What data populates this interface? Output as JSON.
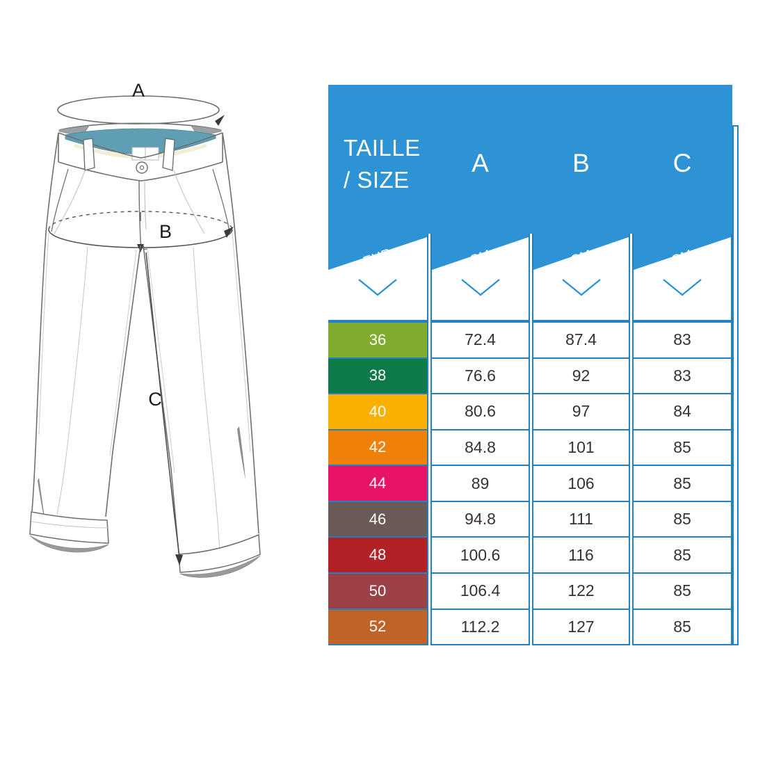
{
  "figure": {
    "labels": {
      "a": "A",
      "b": "B",
      "c": "C"
    }
  },
  "table": {
    "header": {
      "size_label_line1": "TAILLE",
      "size_label_line2": "/ SIZE",
      "col_a": "A",
      "col_b": "B",
      "col_c": "C"
    },
    "units": {
      "size": "EUR",
      "a": "CM",
      "b": "CM",
      "c": "CM"
    },
    "colors": {
      "header_blue": "#2d93d5",
      "border_blue": "#2281c5",
      "chevron_blue": "#2e93d6"
    },
    "rows": [
      {
        "size": "36",
        "color": "#80ab2e",
        "a": "72.4",
        "b": "87.4",
        "c": "83"
      },
      {
        "size": "38",
        "color": "#0d7a49",
        "a": "76.6",
        "b": "92",
        "c": "83"
      },
      {
        "size": "40",
        "color": "#f9b000",
        "a": "80.6",
        "b": "97",
        "c": "84"
      },
      {
        "size": "42",
        "color": "#ef8109",
        "a": "84.8",
        "b": "101",
        "c": "85"
      },
      {
        "size": "44",
        "color": "#e91269",
        "a": "89",
        "b": "106",
        "c": "85"
      },
      {
        "size": "46",
        "color": "#6b5b57",
        "a": "94.8",
        "b": "111",
        "c": "85"
      },
      {
        "size": "48",
        "color": "#b32025",
        "a": "100.6",
        "b": "116",
        "c": "85"
      },
      {
        "size": "50",
        "color": "#9d4146",
        "a": "106.4",
        "b": "122",
        "c": "85"
      },
      {
        "size": "52",
        "color": "#bf6329",
        "a": "112.2",
        "b": "127",
        "c": "85"
      }
    ]
  }
}
